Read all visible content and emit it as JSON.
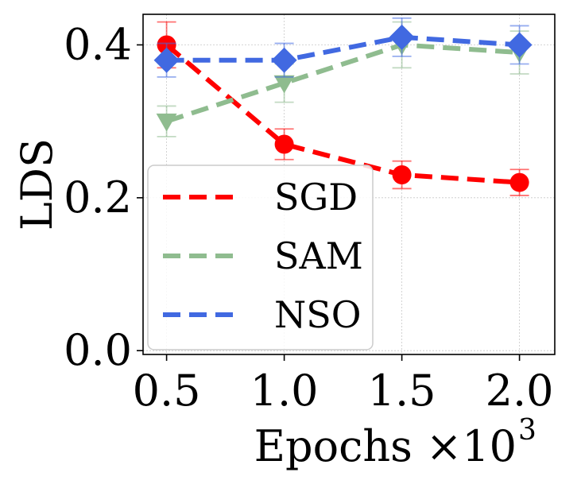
{
  "chart_data": {
    "type": "line",
    "title": "",
    "xlabel": "Epochs ×10",
    "xlabel_exponent": "3",
    "ylabel": "LDS",
    "x": [
      0.5,
      1.0,
      1.5,
      2.0
    ],
    "x_tick_labels": [
      "0.5",
      "1.0",
      "1.5",
      "2.0"
    ],
    "y_ticks": [
      0.0,
      0.2,
      0.4
    ],
    "y_tick_labels": [
      "0.0",
      "0.2",
      "0.4"
    ],
    "xlim": [
      0.4,
      2.15
    ],
    "ylim": [
      -0.005,
      0.44
    ],
    "grid": true,
    "legend_position": "lower-left",
    "series": [
      {
        "name": "SGD",
        "color": "#ff0000",
        "marker": "circle",
        "values": [
          0.4,
          0.27,
          0.23,
          0.22
        ],
        "errors": [
          0.03,
          0.02,
          0.018,
          0.017
        ]
      },
      {
        "name": "SAM",
        "color": "#8fbc8f",
        "marker": "triangle-down",
        "values": [
          0.3,
          0.35,
          0.4,
          0.39
        ],
        "errors": [
          0.02,
          0.025,
          0.03,
          0.028
        ]
      },
      {
        "name": "NSO",
        "color": "#4169e1",
        "marker": "diamond",
        "values": [
          0.38,
          0.38,
          0.41,
          0.4
        ],
        "errors": [
          0.022,
          0.022,
          0.025,
          0.025
        ]
      }
    ]
  }
}
